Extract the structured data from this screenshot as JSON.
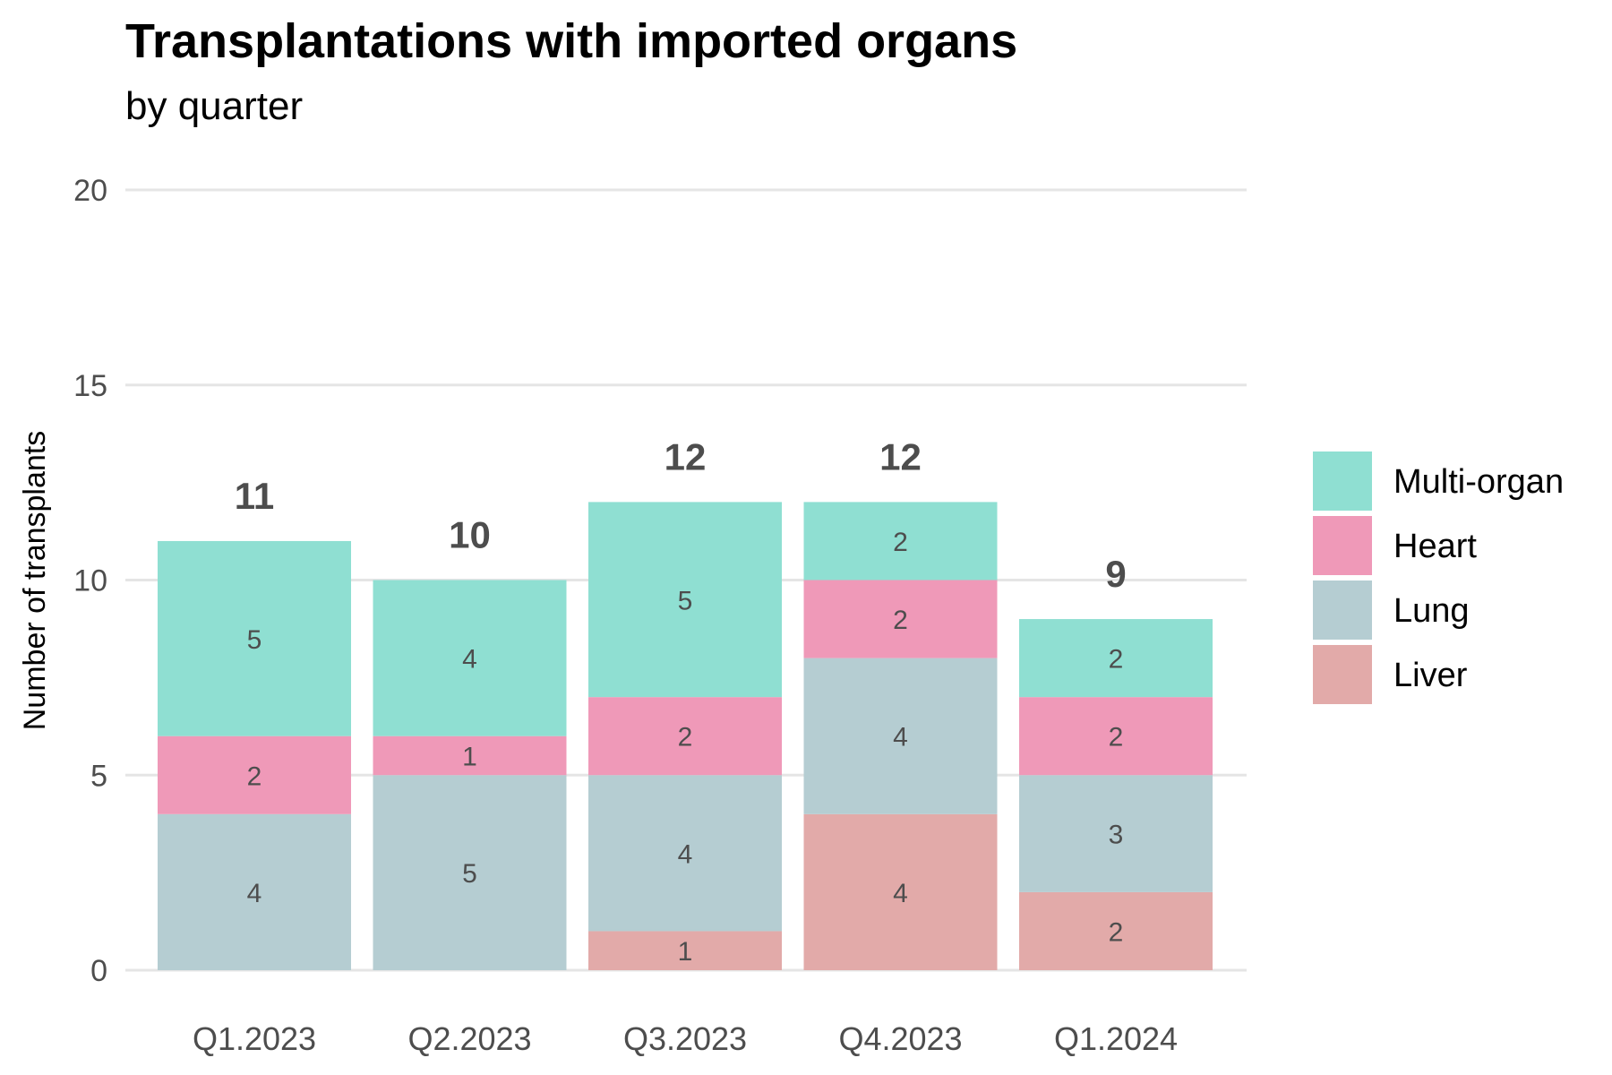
{
  "chart_data": {
    "type": "bar",
    "stacked": true,
    "title": "Transplantations with imported organs",
    "subtitle": "by quarter",
    "xlabel": "",
    "ylabel": "Number of transplants",
    "ylim": [
      0,
      20
    ],
    "yticks": [
      0,
      5,
      10,
      15,
      20
    ],
    "grid": true,
    "legend_position": "right",
    "categories": [
      "Q1.2023",
      "Q2.2023",
      "Q3.2023",
      "Q4.2023",
      "Q1.2024"
    ],
    "series": [
      {
        "name": "Liver",
        "color": "#e2aaa9",
        "values": [
          0,
          0,
          1,
          4,
          2
        ]
      },
      {
        "name": "Lung",
        "color": "#b5cdd2",
        "values": [
          4,
          5,
          4,
          4,
          3
        ]
      },
      {
        "name": "Heart",
        "color": "#ef99b8",
        "values": [
          2,
          1,
          2,
          2,
          2
        ]
      },
      {
        "name": "Multi-organ",
        "color": "#8fdfd2",
        "values": [
          5,
          4,
          5,
          2,
          2
        ]
      }
    ],
    "totals": [
      11,
      10,
      12,
      12,
      9
    ],
    "legend_order": [
      "Multi-organ",
      "Heart",
      "Lung",
      "Liver"
    ]
  }
}
